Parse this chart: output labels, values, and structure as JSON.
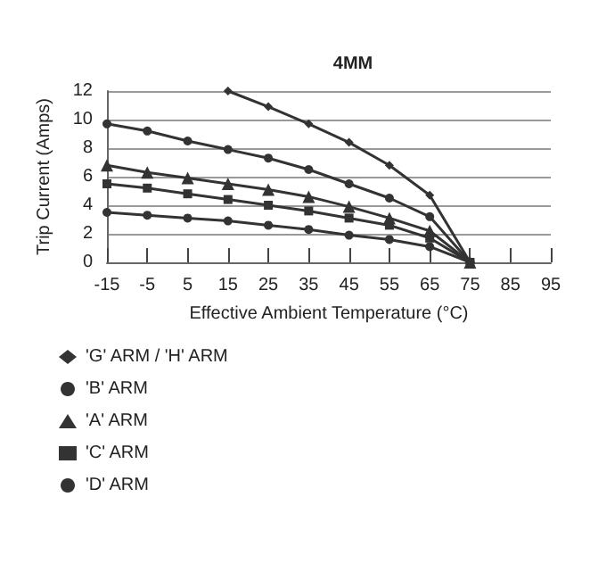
{
  "chart_data": {
    "type": "line",
    "title": "4MM",
    "xlabel": "Effective Ambient Temperature (°C)",
    "ylabel": "Trip Current (Amps)",
    "xlim": [
      -15,
      95
    ],
    "xticks": [
      -15,
      -5,
      5,
      15,
      25,
      35,
      45,
      55,
      65,
      75,
      85,
      95
    ],
    "ylim": [
      0,
      12
    ],
    "yticks": [
      0,
      2,
      4,
      6,
      8,
      10,
      12
    ],
    "grid": "y",
    "legend": "bottom",
    "line_style": "solid",
    "series": [
      {
        "name": "'G' ARM / 'H' ARM",
        "color": "#333333",
        "marker": "diamond",
        "x": [
          15,
          25,
          35,
          45,
          55,
          65,
          75
        ],
        "values": [
          12,
          10.9,
          9.7,
          8.4,
          6.8,
          4.7,
          0
        ]
      },
      {
        "name": "'B' ARM",
        "color": "#333333",
        "marker": "circle",
        "x": [
          -15,
          -5,
          5,
          15,
          25,
          35,
          45,
          55,
          65,
          75
        ],
        "values": [
          9.7,
          9.2,
          8.5,
          7.9,
          7.3,
          6.5,
          5.5,
          4.5,
          3.2,
          0
        ]
      },
      {
        "name": "'A' ARM",
        "color": "#333333",
        "marker": "triangle",
        "x": [
          -15,
          -5,
          5,
          15,
          25,
          35,
          45,
          55,
          65,
          75
        ],
        "values": [
          6.8,
          6.3,
          5.9,
          5.5,
          5.1,
          4.6,
          3.9,
          3.1,
          2.2,
          0
        ]
      },
      {
        "name": "'C' ARM",
        "color": "#333333",
        "marker": "square",
        "x": [
          -15,
          -5,
          5,
          15,
          25,
          35,
          45,
          55,
          65,
          75
        ],
        "values": [
          5.5,
          5.2,
          4.8,
          4.4,
          4.0,
          3.6,
          3.1,
          2.6,
          1.7,
          0
        ]
      },
      {
        "name": "'D' ARM",
        "color": "#333333",
        "marker": "circle",
        "x": [
          -15,
          -5,
          5,
          15,
          25,
          35,
          45,
          55,
          65,
          75
        ],
        "values": [
          3.5,
          3.3,
          3.1,
          2.9,
          2.6,
          2.3,
          1.9,
          1.6,
          1.1,
          0
        ]
      }
    ]
  }
}
